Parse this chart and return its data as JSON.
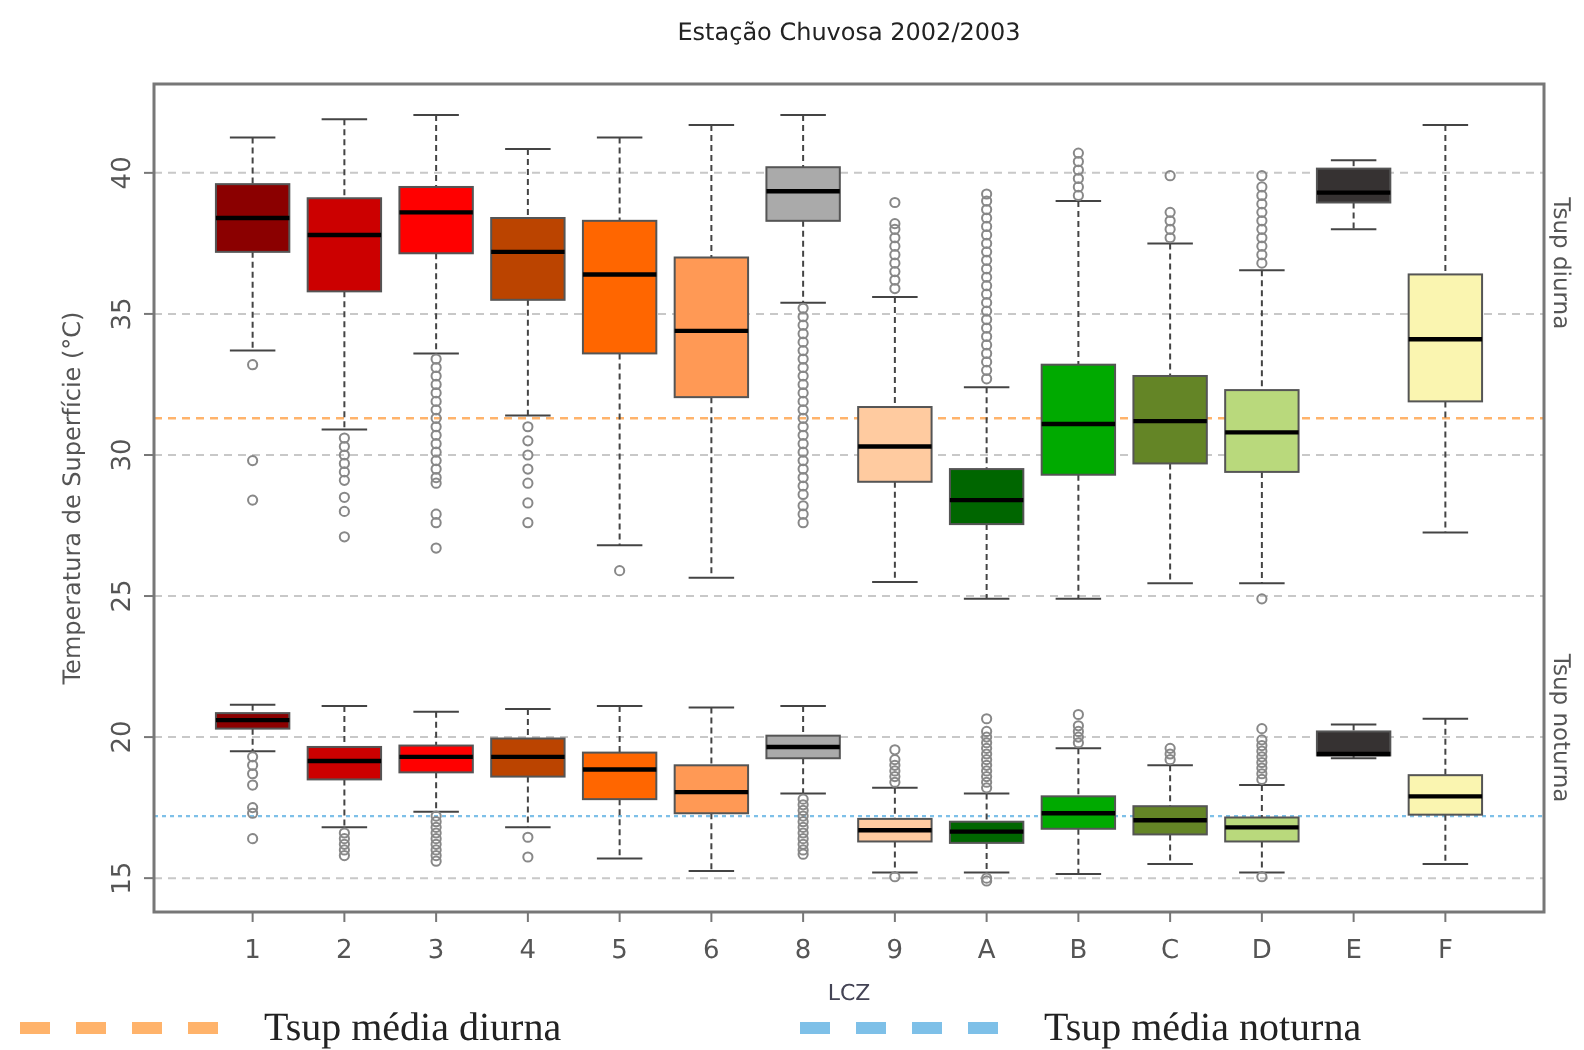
{
  "chart_data": {
    "type": "box",
    "title": "Estação Chuvosa 2002/2003",
    "xlabel": "LCZ",
    "ylabel": "Temperatura de Superfície (°C)",
    "categories": [
      "1",
      "2",
      "3",
      "4",
      "5",
      "6",
      "8",
      "9",
      "A",
      "B",
      "C",
      "D",
      "E",
      "F"
    ],
    "ylim": [
      13.8,
      43.15
    ],
    "yticks": [
      15,
      20,
      25,
      30,
      35,
      40
    ],
    "grid": "y",
    "legend": "bottom",
    "annotations": [
      "Tsup diurna",
      "Tsup noturna"
    ],
    "ref_lines": [
      {
        "axis": "y",
        "value": 31.3,
        "label": "Tsup média diurna",
        "color": "#ffb36b",
        "line_style": "dashed"
      },
      {
        "axis": "y",
        "value": 17.2,
        "label": "Tsup média noturna",
        "color": "#7ec0e8",
        "line_style": "dotted"
      }
    ],
    "series": [
      {
        "colors": [
          "#8b0000",
          "#cc0000",
          "#ff0000",
          "#bb4400",
          "#ff6600",
          "#ff9955",
          "#aaaaaa",
          "#ffcba0",
          "#006600",
          "#00aa00",
          "#648526",
          "#b9d97c",
          "#363232",
          "#faf5b0"
        ],
        "boxes": [
          {
            "low": 33.7,
            "q1": 37.2,
            "median": 38.4,
            "q3": 39.6,
            "high": 41.25,
            "outliers": [
              33.2,
              29.8,
              28.4
            ]
          },
          {
            "low": 30.9,
            "q1": 35.8,
            "median": 37.8,
            "q3": 39.1,
            "high": 41.9,
            "outliers": [
              30.6,
              30.3,
              30,
              29.7,
              29.4,
              29.1,
              28.5,
              28,
              27.1
            ]
          },
          {
            "low": 33.6,
            "q1": 37.15,
            "median": 38.6,
            "q3": 39.5,
            "high": 42.05,
            "outliers": [
              33.4,
              33.1,
              32.8,
              32.5,
              32.2,
              31.9,
              31.6,
              31.3,
              31,
              30.7,
              30.4,
              30.1,
              29.8,
              29.5,
              29.2,
              29,
              27.9,
              27.6,
              26.7
            ]
          },
          {
            "low": 31.4,
            "q1": 35.5,
            "median": 37.2,
            "q3": 38.4,
            "high": 40.85,
            "outliers": [
              31,
              30.5,
              30,
              29.5,
              29,
              28.3,
              27.6
            ]
          },
          {
            "low": 26.8,
            "q1": 33.6,
            "median": 36.4,
            "q3": 38.3,
            "high": 41.25,
            "outliers": [
              25.9
            ]
          },
          {
            "low": 25.65,
            "q1": 32.05,
            "median": 34.4,
            "q3": 37,
            "high": 41.7
          },
          {
            "low": 35.4,
            "q1": 38.3,
            "median": 39.35,
            "q3": 40.2,
            "high": 42.05,
            "outliers": [
              35.2,
              34.9,
              34.6,
              34.3,
              34,
              33.7,
              33.4,
              33.1,
              32.8,
              32.5,
              32.2,
              31.9,
              31.6,
              31.3,
              31,
              30.7,
              30.4,
              30.1,
              29.8,
              29.5,
              29.2,
              28.9,
              28.6,
              28.2,
              27.9,
              27.6
            ]
          },
          {
            "low": 25.5,
            "q1": 29.05,
            "median": 30.3,
            "q3": 31.7,
            "high": 35.6,
            "outliers": [
              35.9,
              36.2,
              36.5,
              36.8,
              37.1,
              37.4,
              37.7,
              38,
              38.2,
              38.95
            ]
          },
          {
            "low": 24.9,
            "q1": 27.55,
            "median": 28.4,
            "q3": 29.5,
            "high": 32.4,
            "outliers": [
              32.7,
              33,
              33.3,
              33.6,
              33.9,
              34.2,
              34.5,
              34.8,
              35.1,
              35.4,
              35.7,
              36,
              36.3,
              36.6,
              36.9,
              37.2,
              37.5,
              37.8,
              38.1,
              38.4,
              38.7,
              39,
              39.25
            ]
          },
          {
            "low": 24.9,
            "q1": 29.3,
            "median": 31.1,
            "q3": 33.2,
            "high": 39,
            "outliers": [
              39.2,
              39.5,
              39.8,
              40.1,
              40.4,
              40.7
            ]
          },
          {
            "low": 25.45,
            "q1": 29.7,
            "median": 31.2,
            "q3": 32.8,
            "high": 37.5,
            "outliers": [
              37.7,
              38,
              38.3,
              38.6,
              39.9
            ]
          },
          {
            "low": 25.45,
            "q1": 29.4,
            "median": 30.8,
            "q3": 32.3,
            "high": 36.55,
            "outliers": [
              36.8,
              37.1,
              37.4,
              37.7,
              38,
              38.3,
              38.6,
              38.9,
              39.2,
              39.5,
              39.9,
              24.9
            ]
          },
          {
            "low": 38,
            "q1": 38.95,
            "median": 39.3,
            "q3": 40.15,
            "high": 40.45
          },
          {
            "low": 27.25,
            "q1": 31.9,
            "median": 34.1,
            "q3": 36.4,
            "high": 41.7
          }
        ]
      },
      {
        "colors": [
          "#8b0000",
          "#cc0000",
          "#ff0000",
          "#bb4400",
          "#ff6600",
          "#ff9955",
          "#aaaaaa",
          "#ffcba0",
          "#006600",
          "#00aa00",
          "#648526",
          "#b9d97c",
          "#363232",
          "#faf5b0"
        ],
        "boxes": [
          {
            "low": 19.5,
            "q1": 20.3,
            "median": 20.6,
            "q3": 20.85,
            "high": 21.15,
            "outliers": [
              19.3,
              19,
              18.7,
              18.3,
              17.5,
              17.3,
              16.4
            ]
          },
          {
            "low": 16.8,
            "q1": 18.5,
            "median": 19.15,
            "q3": 19.65,
            "high": 21.1,
            "outliers": [
              16.6,
              16.4,
              16.2,
              16,
              15.8
            ]
          },
          {
            "low": 17.35,
            "q1": 18.75,
            "median": 19.3,
            "q3": 19.7,
            "high": 20.9,
            "outliers": [
              17.2,
              17,
              16.8,
              16.6,
              16.4,
              16.2,
              16,
              15.8,
              15.6
            ]
          },
          {
            "low": 16.8,
            "q1": 18.6,
            "median": 19.3,
            "q3": 19.95,
            "high": 21,
            "outliers": [
              16.45,
              15.75
            ]
          },
          {
            "low": 15.7,
            "q1": 17.8,
            "median": 18.85,
            "q3": 19.45,
            "high": 21.1
          },
          {
            "low": 15.25,
            "q1": 17.3,
            "median": 18.05,
            "q3": 19,
            "high": 21.05
          },
          {
            "low": 18,
            "q1": 19.25,
            "median": 19.65,
            "q3": 20.05,
            "high": 21.1,
            "outliers": [
              17.8,
              17.6,
              17.4,
              17.2,
              17,
              16.8,
              16.6,
              16.4,
              16.2,
              16,
              15.85
            ]
          },
          {
            "low": 15.2,
            "q1": 16.3,
            "median": 16.7,
            "q3": 17.1,
            "high": 18.2,
            "outliers": [
              18.4,
              18.6,
              18.8,
              19,
              19.2,
              19.55,
              15.05
            ]
          },
          {
            "low": 15.2,
            "q1": 16.25,
            "median": 16.65,
            "q3": 17,
            "high": 18,
            "outliers": [
              18.2,
              18.4,
              18.6,
              18.8,
              19,
              19.2,
              19.4,
              19.6,
              19.8,
              20,
              20.2,
              20.65,
              15,
              14.9
            ]
          },
          {
            "low": 15.15,
            "q1": 16.75,
            "median": 17.3,
            "q3": 17.9,
            "high": 19.6,
            "outliers": [
              19.8,
              20,
              20.2,
              20.4,
              20.8
            ]
          },
          {
            "low": 15.5,
            "q1": 16.55,
            "median": 17.05,
            "q3": 17.55,
            "high": 19,
            "outliers": [
              19.2,
              19.4,
              19.6
            ]
          },
          {
            "low": 15.2,
            "q1": 16.3,
            "median": 16.8,
            "q3": 17.15,
            "high": 18.3,
            "outliers": [
              18.5,
              18.7,
              18.9,
              19.1,
              19.3,
              19.5,
              19.7,
              19.9,
              20.3,
              15.05
            ]
          },
          {
            "low": 19.25,
            "q1": 19.35,
            "median": 19.4,
            "q3": 20.2,
            "high": 20.45
          },
          {
            "low": 15.5,
            "q1": 17.25,
            "median": 17.9,
            "q3": 18.65,
            "high": 20.65
          }
        ]
      }
    ]
  }
}
